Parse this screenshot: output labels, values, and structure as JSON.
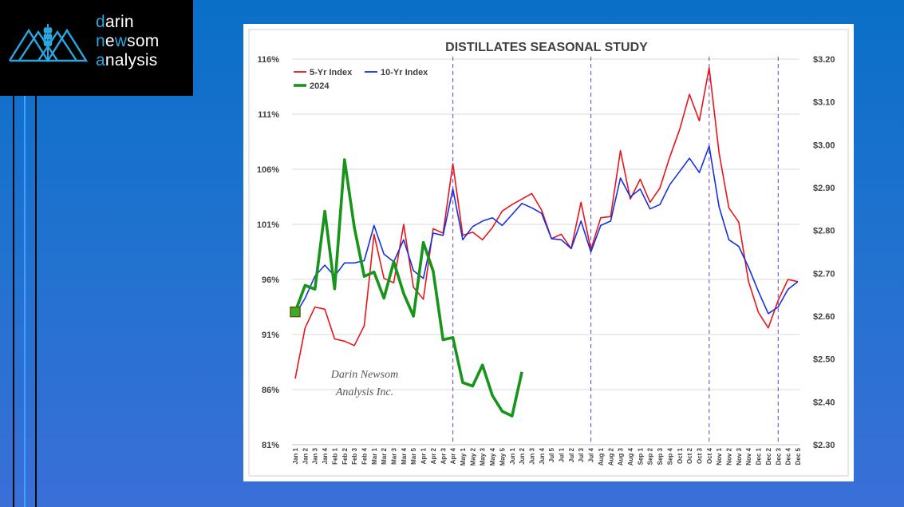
{
  "brand": {
    "line1_first": "d",
    "line1_rest": "arin",
    "line2_first": "n",
    "line2_mid": "e",
    "line2_acc": "w",
    "line2_rest": "som",
    "line3_first": "a",
    "line3_rest": "nalysis",
    "logo_icon": "mountain-wheat-icon"
  },
  "colors": {
    "five_yr": "#e8141b",
    "ten_yr": "#1530e0",
    "y2024": "#16951a",
    "divider": "#6a3dc8",
    "accent": "#29a8e0"
  },
  "chart_data": {
    "type": "line",
    "title": "DISTILLATES SEASONAL STUDY",
    "watermark": [
      "Darin Newsom",
      "Analysis Inc."
    ],
    "x_labels": [
      "Jan 1",
      "Jan 2",
      "Jan 3",
      "Jan 4",
      "Feb 1",
      "Feb 2",
      "Feb 3",
      "Feb 4",
      "Mar 1",
      "Mar 2",
      "Mar 3",
      "Mar 4",
      "Mar 5",
      "Apr 1",
      "Apr 2",
      "Apr 3",
      "Apr 4",
      "May 1",
      "May 2",
      "May 3",
      "May 4",
      "May 5",
      "Jun 1",
      "Jun 2",
      "Jun 3",
      "Jun 4",
      "Jul 5",
      "Jul 1",
      "Jul 2",
      "Jul 3",
      "Jul 4",
      "Aug 1",
      "Aug 2",
      "Aug 3",
      "Aug 4",
      "Sep 1",
      "Sep 2",
      "Sep 3",
      "Sep 4",
      "Oct 1",
      "Oct 2",
      "Oct 3",
      "Oct 4",
      "Nov 1",
      "Nov 2",
      "Nov 3",
      "Nov 4",
      "Dec 1",
      "Dec 2",
      "Dec 3",
      "Dec 4",
      "Dec 5"
    ],
    "y_left": {
      "ticks": [
        "116%",
        "111%",
        "106%",
        "101%",
        "96%",
        "91%",
        "86%",
        "81%"
      ],
      "min": 81,
      "max": 116
    },
    "y_right": {
      "ticks": [
        "$3.20",
        "$3.10",
        "$3.00",
        "$2.90",
        "$2.80",
        "$2.70",
        "$2.60",
        "$2.50",
        "$2.40",
        "$2.30"
      ],
      "min": 2.3,
      "max": 3.2
    },
    "dividers_after": [
      "Apr 4",
      "Jul 4",
      "Oct 4",
      "Dec 3"
    ],
    "legend_position": "top-left",
    "series": [
      {
        "name": "5-Yr Index",
        "axis": "left",
        "color": "#e8141b",
        "values": [
          87.0,
          91.6,
          93.5,
          93.3,
          90.6,
          90.4,
          90.0,
          91.8,
          100.1,
          96.1,
          95.7,
          101.0,
          95.3,
          94.2,
          100.6,
          100.2,
          106.5,
          100.0,
          100.3,
          99.6,
          100.7,
          102.2,
          102.8,
          103.3,
          103.8,
          102.3,
          99.7,
          100.1,
          98.8,
          103.0,
          98.7,
          101.6,
          101.7,
          107.7,
          103.3,
          105.1,
          103.0,
          104.3,
          107.1,
          109.6,
          112.8,
          110.4,
          115.2,
          107.5,
          102.5,
          101.2,
          95.8,
          93.0,
          91.6,
          94.1,
          96.0,
          95.8
        ]
      },
      {
        "name": "10-Yr Index",
        "axis": "left",
        "color": "#1530e0",
        "values": [
          92.8,
          94.3,
          96.3,
          97.3,
          96.3,
          97.5,
          97.5,
          97.7,
          100.9,
          98.3,
          97.6,
          99.6,
          96.8,
          96.1,
          100.2,
          100.0,
          104.2,
          99.6,
          100.8,
          101.3,
          101.6,
          100.9,
          101.9,
          102.9,
          102.5,
          102.0,
          99.7,
          99.6,
          98.8,
          101.3,
          98.5,
          100.9,
          101.3,
          105.2,
          103.5,
          104.2,
          102.4,
          102.8,
          104.6,
          105.8,
          107.0,
          105.7,
          108.1,
          102.6,
          99.6,
          99.0,
          97.1,
          94.9,
          92.9,
          93.5,
          95.1,
          95.8
        ]
      },
      {
        "name": "2024",
        "axis": "right",
        "color": "#16951a",
        "values": [
          2.61,
          2.672,
          2.663,
          2.845,
          2.664,
          2.965,
          2.807,
          2.693,
          2.703,
          2.642,
          2.727,
          2.653,
          2.6,
          2.772,
          2.705,
          2.545,
          2.55,
          2.445,
          2.437,
          2.486,
          2.415,
          2.378,
          2.367,
          2.47
        ]
      }
    ]
  }
}
